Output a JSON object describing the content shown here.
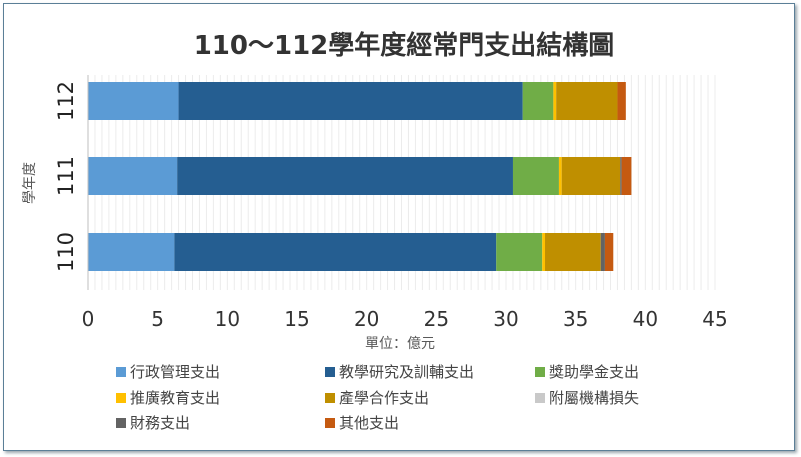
{
  "chart_data": {
    "type": "bar",
    "orientation": "horizontal",
    "stacked": true,
    "title": "110～112學年度經常門支出結構圖",
    "xlabel": "單位：億元",
    "ylabel": "學年度",
    "xlim": [
      0,
      45
    ],
    "xticks": [
      0,
      5,
      10,
      15,
      20,
      25,
      30,
      35,
      40,
      45
    ],
    "categories": [
      "112",
      "111",
      "110"
    ],
    "series": [
      {
        "name": "行政管理支出",
        "color": "#5b9bd5",
        "values": [
          6.5,
          6.4,
          6.2
        ]
      },
      {
        "name": "教學研究及訓輔支出",
        "color": "#255e91",
        "values": [
          24.7,
          24.1,
          23.1
        ]
      },
      {
        "name": "獎助學金支出",
        "color": "#70ad47",
        "values": [
          2.2,
          3.3,
          3.3
        ]
      },
      {
        "name": "推廣教育支出",
        "color": "#ffc000",
        "values": [
          0.2,
          0.2,
          0.2
        ]
      },
      {
        "name": "產學合作支出",
        "color": "#bf8f00",
        "values": [
          4.4,
          4.2,
          4.0
        ]
      },
      {
        "name": "附屬機構損失",
        "color": "#c9c9c9",
        "values": [
          0.0,
          0.0,
          0.0
        ]
      },
      {
        "name": "財務支出",
        "color": "#636363",
        "values": [
          0.0,
          0.1,
          0.3
        ]
      },
      {
        "name": "其他支出",
        "color": "#c55a11",
        "values": [
          0.6,
          0.7,
          0.6
        ]
      }
    ],
    "legend_position": "bottom",
    "grid": true
  }
}
